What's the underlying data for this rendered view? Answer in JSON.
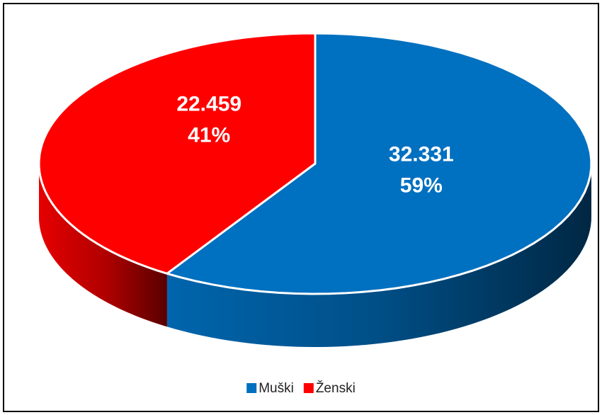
{
  "chart_data": {
    "type": "pie",
    "categories": [
      "Muški",
      "Ženski"
    ],
    "values": [
      32331,
      22459
    ],
    "value_labels": [
      "32.331",
      "22.459"
    ],
    "percents": [
      59,
      41
    ],
    "percent_labels": [
      "59%",
      "41%"
    ],
    "colors": [
      "#0070c0",
      "#ff0000"
    ],
    "legend": "bottom"
  }
}
